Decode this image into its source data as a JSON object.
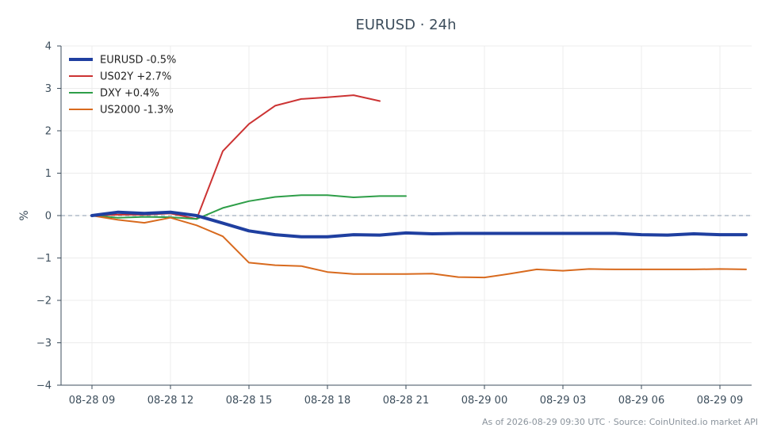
{
  "chart_data": {
    "type": "line",
    "title": "EURUSD · 24h",
    "ylabel": "%",
    "xlabel": "",
    "ylim": [
      -4,
      4
    ],
    "yticks": [
      4,
      3,
      2,
      1,
      0,
      -1,
      -2,
      -3,
      -4
    ],
    "ytick_labels": [
      "4",
      "3",
      "2",
      "1",
      "0",
      "−1",
      "−2",
      "−3",
      "−4"
    ],
    "xticks": [
      "08-28 09",
      "08-28 12",
      "08-28 15",
      "08-28 18",
      "08-28 21",
      "08-29 00",
      "08-29 03",
      "08-29 06",
      "08-29 09"
    ],
    "grid": true,
    "zero_line": true,
    "legend_position": "top-left",
    "series": [
      {
        "name": "EURUSD -0.5%",
        "color": "#1f3fa0",
        "width": 4,
        "values": [
          0,
          0.08,
          0.05,
          0.08,
          0.0,
          -0.18,
          -0.36,
          -0.45,
          -0.5,
          -0.5,
          -0.45,
          -0.46,
          -0.41,
          -0.43,
          -0.42,
          -0.42,
          -0.42,
          -0.42,
          -0.42,
          -0.42,
          -0.42,
          -0.45,
          -0.46,
          -0.43,
          -0.45,
          -0.45
        ]
      },
      {
        "name": "US02Y +2.7%",
        "color": "#cc3333",
        "width": 2,
        "values": [
          0,
          0.02,
          0.02,
          0.05,
          -0.08,
          1.52,
          2.16,
          2.59,
          2.75,
          2.79,
          2.84,
          2.7
        ]
      },
      {
        "name": "DXY +0.4%",
        "color": "#2e9e48",
        "width": 2,
        "values": [
          0,
          -0.05,
          -0.03,
          -0.04,
          -0.08,
          0.18,
          0.34,
          0.44,
          0.48,
          0.48,
          0.43,
          0.46,
          0.46
        ]
      },
      {
        "name": "US2000 -1.3%",
        "color": "#d86a1e",
        "width": 2,
        "values": [
          0,
          -0.1,
          -0.17,
          -0.05,
          -0.23,
          -0.49,
          -1.11,
          -1.17,
          -1.19,
          -1.33,
          -1.38,
          -1.38,
          -1.38,
          -1.37,
          -1.45,
          -1.46,
          -1.37,
          -1.27,
          -1.3,
          -1.26,
          -1.27,
          -1.27,
          -1.27,
          -1.27,
          -1.26,
          -1.27
        ]
      }
    ]
  },
  "footer": "As of 2026-08-29 09:30 UTC · Source: CoinUnited.io market API"
}
